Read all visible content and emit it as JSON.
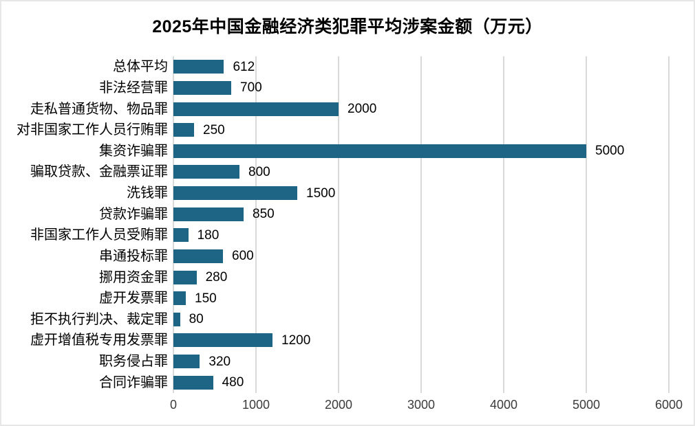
{
  "title": "2025年中国金融经济类犯罪平均涉案金额（万元）",
  "chart_data": {
    "type": "bar",
    "orientation": "horizontal",
    "title": "2025年中国金融经济类犯罪平均涉案金额（万元）",
    "categories": [
      "总体平均",
      "非法经营罪",
      "走私普通货物、物品罪",
      "对非国家工作人员行贿罪",
      "集资诈骗罪",
      "骗取贷款、金融票证罪",
      "洗钱罪",
      "贷款诈骗罪",
      "非国家工作人员受贿罪",
      "串通投标罪",
      "挪用资金罪",
      "虚开发票罪",
      "拒不执行判决、裁定罪",
      "虚开增值税专用发票罪",
      "职务侵占罪",
      "合同诈骗罪"
    ],
    "values": [
      612,
      700,
      2000,
      250,
      5000,
      800,
      1500,
      850,
      180,
      600,
      280,
      150,
      80,
      1200,
      320,
      480
    ],
    "value_labels": [
      "612",
      "700",
      "2000",
      "250",
      "5000",
      "800",
      "1500",
      "850",
      "180",
      "600",
      "280",
      "150",
      "80",
      "1200",
      "320",
      "480"
    ],
    "xlabel": "",
    "ylabel": "",
    "xlim": [
      0,
      6000
    ],
    "xticks": [
      0,
      1000,
      2000,
      3000,
      4000,
      5000,
      6000
    ],
    "xtick_labels": [
      "0",
      "1000",
      "2000",
      "3000",
      "4000",
      "5000",
      "6000"
    ],
    "grid": true,
    "legend": false,
    "colors": {
      "bar": "#1e6585",
      "gridline": "#d9d9d9",
      "title_text": "#000000",
      "label_text": "#000000",
      "tick_text": "#3b3b3b",
      "background": "#ffffff",
      "border": "#e7e7e7"
    }
  }
}
